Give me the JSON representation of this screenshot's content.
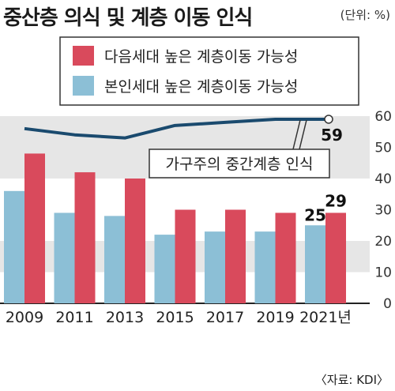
{
  "header": {
    "title": "중산층 의식 및 계층 이동 인식",
    "unit": "(단위: %)"
  },
  "source": "〈자료: KDI〉",
  "colors": {
    "next_generation": "#d94a5c",
    "self": "#8cbfd6",
    "line": "#1a4a6e",
    "band": "#e6e6e6"
  },
  "chart_data": {
    "type": "bar",
    "categories": [
      "2009",
      "2011",
      "2013",
      "2015",
      "2017",
      "2019",
      "2021년"
    ],
    "series": [
      {
        "name": "본인세대 높은 계층이동 가능성",
        "type": "bar",
        "values": [
          36,
          29,
          28,
          22,
          23,
          23,
          25
        ]
      },
      {
        "name": "다음세대 높은 계층이동 가능성",
        "type": "bar",
        "values": [
          48,
          42,
          40,
          30,
          30,
          29,
          29
        ]
      },
      {
        "name": "가구주의 중간계층 인식",
        "type": "line",
        "values": [
          56,
          54,
          53,
          57,
          58,
          59,
          59
        ]
      }
    ],
    "data_labels": [
      {
        "series": 0,
        "index": 6,
        "text": "25"
      },
      {
        "series": 1,
        "index": 6,
        "text": "29"
      },
      {
        "series": 2,
        "index": 6,
        "text": "59"
      }
    ],
    "y_ticks": [
      "0",
      "10",
      "20",
      "30",
      "40",
      "50",
      "60"
    ],
    "ylim": [
      0,
      60
    ],
    "legend_position": "top"
  }
}
